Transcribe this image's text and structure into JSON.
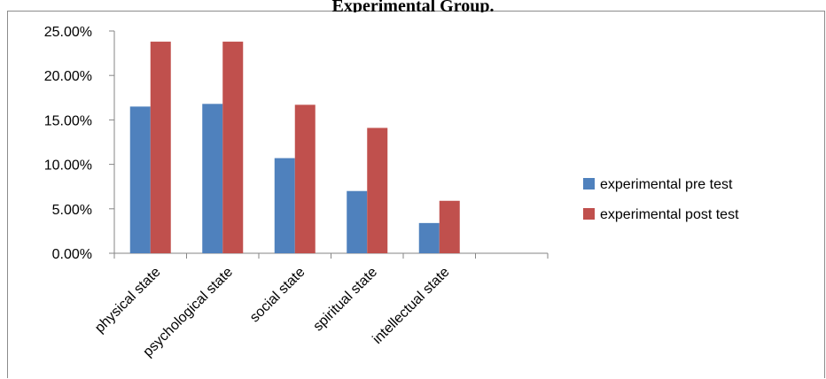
{
  "chart_data": {
    "type": "bar",
    "title": "Experimental Group.",
    "categories": [
      "physical state",
      "psychological state",
      "social state",
      "spiritual state",
      "intellectual state"
    ],
    "series": [
      {
        "name": "experimental pre test",
        "values": [
          16.5,
          16.8,
          10.7,
          7.0,
          3.4
        ],
        "color": "#4F81BD"
      },
      {
        "name": "experimental post test",
        "values": [
          23.8,
          23.8,
          16.7,
          14.1,
          5.9
        ],
        "color": "#C0504D"
      }
    ],
    "y_ticks": [
      "0.00%",
      "5.00%",
      "10.00%",
      "15.00%",
      "20.00%",
      "25.00%"
    ],
    "ylim": [
      0,
      25
    ],
    "y_unit": "percent",
    "grid": false,
    "legend_position": "right",
    "empty_trailing_category_slots": 1
  }
}
